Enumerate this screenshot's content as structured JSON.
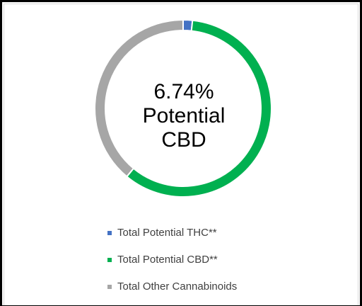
{
  "chart_data": {
    "type": "pie",
    "variant": "donut",
    "center_label": [
      "6.74%",
      "Potential",
      "CBD"
    ],
    "series": [
      {
        "name": "Total Potential THC**",
        "value": 1.7,
        "color": "#4472c4"
      },
      {
        "name": "Total Potential CBD**",
        "value": 59.3,
        "color": "#00b050"
      },
      {
        "name": "Total Other Cannabinoids",
        "value": 39.0,
        "color": "#a6a6a6"
      }
    ],
    "legend_position": "bottom"
  }
}
